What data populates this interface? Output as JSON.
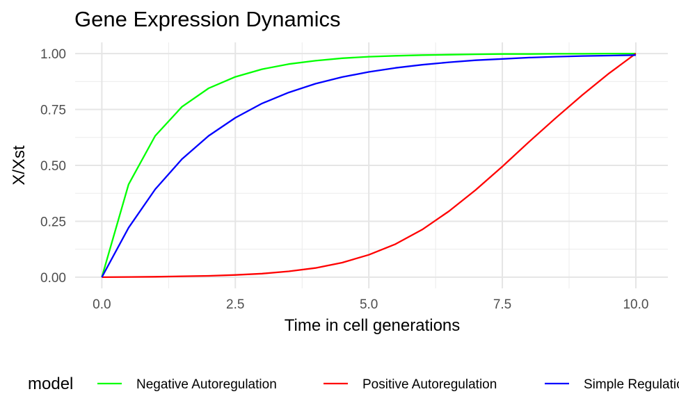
{
  "chart_data": {
    "type": "line",
    "title": "Gene Expression Dynamics",
    "xlabel": "Time in cell generations",
    "ylabel": "X/Xst",
    "xlim": [
      -0.5,
      10.6
    ],
    "ylim": [
      -0.05,
      1.05
    ],
    "x_ticks": [
      0,
      2.5,
      5,
      7.5,
      10
    ],
    "x_tick_labels": [
      "0.0",
      "2.5",
      "5.0",
      "7.5",
      "10.0"
    ],
    "y_ticks": [
      0,
      0.25,
      0.5,
      0.75,
      1
    ],
    "y_tick_labels": [
      "0.00",
      "0.25",
      "0.50",
      "0.75",
      "1.00"
    ],
    "grid": true,
    "legend": {
      "title": "model",
      "position": "bottom"
    },
    "x": [
      0,
      0.5,
      1,
      1.5,
      2,
      2.5,
      3,
      3.5,
      4,
      4.5,
      5,
      5.5,
      6,
      6.5,
      7,
      7.5,
      8,
      8.5,
      9,
      9.5,
      10
    ],
    "series": [
      {
        "name": "Negative Autoregulation",
        "color": "#00ff00",
        "values": [
          0,
          0.415,
          0.632,
          0.762,
          0.845,
          0.896,
          0.93,
          0.953,
          0.968,
          0.979,
          0.986,
          0.99,
          0.993,
          0.995,
          0.997,
          0.998,
          0.998,
          0.999,
          0.999,
          1.0,
          1.0
        ]
      },
      {
        "name": "Positive Autoregulation",
        "color": "#ff0000",
        "values": [
          0,
          0.001,
          0.002,
          0.004,
          0.006,
          0.01,
          0.016,
          0.026,
          0.041,
          0.065,
          0.1,
          0.148,
          0.213,
          0.295,
          0.39,
          0.495,
          0.605,
          0.712,
          0.815,
          0.912,
          1.0
        ]
      },
      {
        "name": "Simple Regulation",
        "color": "#0000ff",
        "values": [
          0,
          0.221,
          0.393,
          0.528,
          0.632,
          0.713,
          0.777,
          0.826,
          0.865,
          0.895,
          0.918,
          0.936,
          0.95,
          0.961,
          0.97,
          0.976,
          0.982,
          0.986,
          0.989,
          0.991,
          0.993
        ]
      }
    ]
  }
}
